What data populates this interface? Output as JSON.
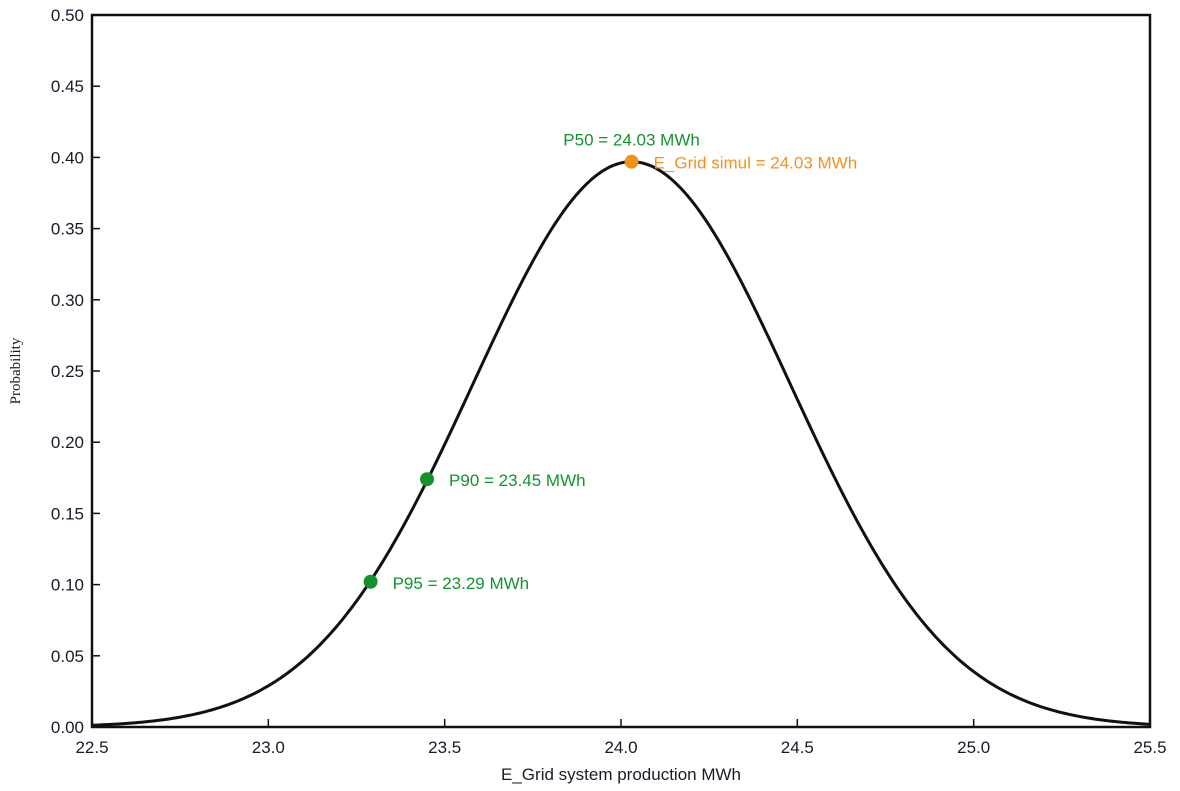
{
  "chart_data": {
    "type": "line",
    "title": "",
    "xlabel": "E_Grid system production MWh",
    "ylabel": "Probability",
    "xlim": [
      22.5,
      25.5
    ],
    "ylim": [
      0.0,
      0.5
    ],
    "x_ticks": [
      "22.5",
      "23.0",
      "23.5",
      "24.0",
      "24.5",
      "25.0",
      "25.5"
    ],
    "y_ticks": [
      "0.00",
      "0.05",
      "0.10",
      "0.15",
      "0.20",
      "0.25",
      "0.30",
      "0.35",
      "0.40",
      "0.45",
      "0.50"
    ],
    "grid": false,
    "legend": "none",
    "series": [
      {
        "color": "#111111",
        "distribution": {
          "mean": 24.03,
          "std": 0.45,
          "peak": 0.397
        }
      }
    ],
    "markers": [
      {
        "x": 24.03,
        "y": 0.397,
        "color": "#f2921d",
        "label": "E_Grid simul = 24.03 MWh"
      },
      {
        "x": 23.45,
        "y": 0.174,
        "color": "#15922e",
        "label": "P90 = 23.45 MWh"
      },
      {
        "x": 23.29,
        "y": 0.102,
        "color": "#15922e",
        "label": "P95 = 23.29 MWh"
      }
    ],
    "annotations": [
      {
        "x": 24.03,
        "y": 0.397,
        "color": "#15922e",
        "label": "P50 = 24.03 MWh"
      }
    ]
  }
}
